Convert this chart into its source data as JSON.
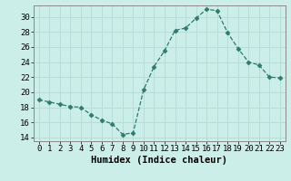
{
  "x": [
    0,
    1,
    2,
    3,
    4,
    5,
    6,
    7,
    8,
    9,
    10,
    11,
    12,
    13,
    14,
    15,
    16,
    17,
    18,
    19,
    20,
    21,
    22,
    23
  ],
  "y": [
    19.0,
    18.7,
    18.4,
    18.1,
    18.0,
    17.0,
    16.3,
    15.8,
    14.4,
    14.6,
    20.3,
    23.4,
    25.5,
    28.2,
    28.5,
    29.8,
    31.0,
    30.8,
    27.9,
    25.8,
    24.0,
    23.6,
    22.0,
    21.9
  ],
  "line_color": "#2d7a6e",
  "marker": "D",
  "marker_size": 2.5,
  "bg_color": "#cceee8",
  "grid_color": "#b8ddd8",
  "xlabel": "Humidex (Indice chaleur)",
  "ylim": [
    13.5,
    31.5
  ],
  "yticks": [
    14,
    16,
    18,
    20,
    22,
    24,
    26,
    28,
    30
  ],
  "xticks": [
    0,
    1,
    2,
    3,
    4,
    5,
    6,
    7,
    8,
    9,
    10,
    11,
    12,
    13,
    14,
    15,
    16,
    17,
    18,
    19,
    20,
    21,
    22,
    23
  ],
  "xtick_labels": [
    "0",
    "1",
    "2",
    "3",
    "4",
    "5",
    "6",
    "7",
    "8",
    "9",
    "10",
    "11",
    "12",
    "13",
    "14",
    "15",
    "16",
    "17",
    "18",
    "19",
    "20",
    "21",
    "22",
    "23"
  ],
  "xlabel_fontsize": 7.5,
  "tick_fontsize": 6.5,
  "spine_color": "#888888"
}
